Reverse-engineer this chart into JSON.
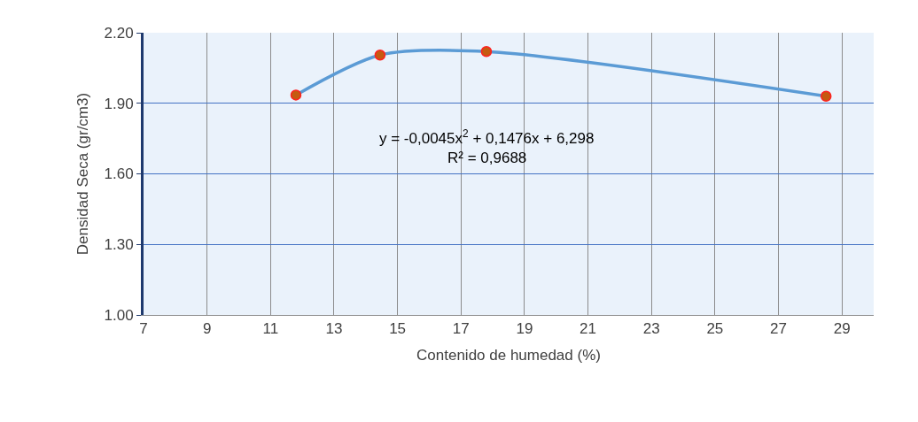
{
  "chart_data": {
    "type": "line",
    "xlabel": "Contenido de humedad (%)",
    "ylabel": "Densidad Seca (gr/cm3)",
    "x": [
      11.8,
      14.45,
      17.8,
      28.5
    ],
    "series": [
      {
        "color": "#5b9bd5",
        "values": [
          1.935,
          2.105,
          2.12,
          1.93
        ]
      }
    ],
    "marker": "circle",
    "xlim": [
      7,
      30
    ],
    "xticks": [
      7,
      9,
      11,
      13,
      15,
      17,
      19,
      21,
      23,
      25,
      27,
      29
    ],
    "ylim": [
      1.0,
      2.2
    ],
    "yticks": [
      {
        "value": 1.0,
        "label": "1.00"
      },
      {
        "value": 1.3,
        "label": "1.30"
      },
      {
        "value": 1.6,
        "label": "1.60"
      },
      {
        "value": 1.9,
        "label": "1.90"
      },
      {
        "value": 2.2,
        "label": "2.20"
      }
    ],
    "grid": true,
    "annotations": [
      "y = -0,0045x$^{2}$ + 0,1476x + 6,298",
      "R² = 0,9688"
    ]
  }
}
